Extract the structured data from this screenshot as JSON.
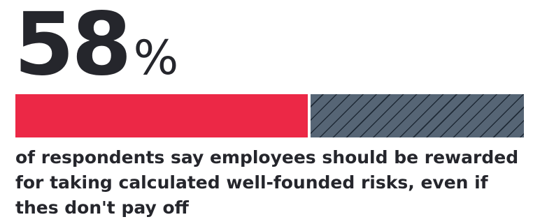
{
  "chart_data": {
    "type": "bar",
    "values": [
      58,
      42
    ],
    "value_label": "58",
    "unit": "%",
    "caption": "of respondents say employees should be rewarded for taking calculated well-founded risks, even if thes don't pay off"
  },
  "colors": {
    "text": "#25262c",
    "highlight": "#ec2846",
    "remainder": "#566575",
    "hatch": "#1f2a36"
  }
}
